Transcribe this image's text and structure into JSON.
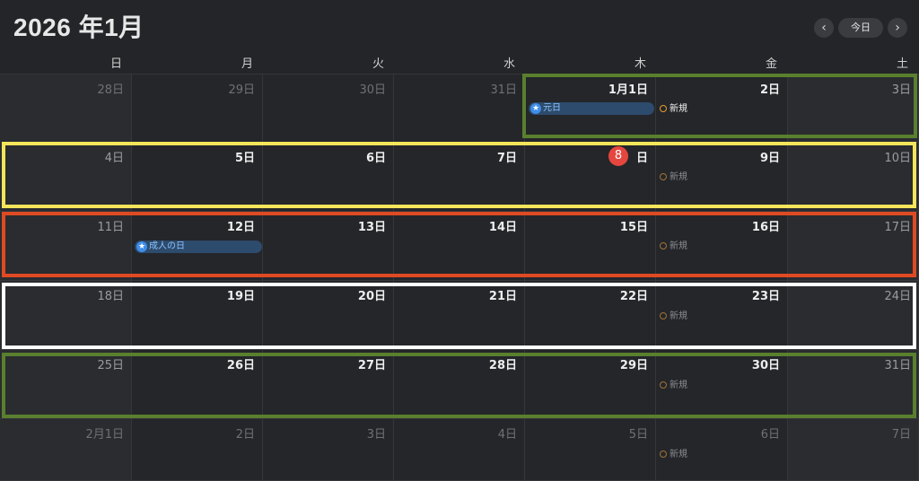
{
  "header": {
    "title": "2026 年1月",
    "prev_label": "‹",
    "today_label": "今日",
    "next_label": "›"
  },
  "weekdays": [
    "日",
    "月",
    "火",
    "水",
    "木",
    "金",
    "土"
  ],
  "weeks": [
    [
      "28日",
      "29日",
      "30日",
      "31日",
      "1月1日",
      "2日",
      "3日"
    ],
    [
      "4日",
      "5日",
      "6日",
      "7日",
      "8",
      "9日",
      "10日"
    ],
    [
      "11日",
      "12日",
      "13日",
      "14日",
      "15日",
      "16日",
      "17日"
    ],
    [
      "18日",
      "19日",
      "20日",
      "21日",
      "22日",
      "23日",
      "24日"
    ],
    [
      "25日",
      "26日",
      "27日",
      "28日",
      "29日",
      "30日",
      "31日"
    ],
    [
      "2月1日",
      "2日",
      "3日",
      "4日",
      "5日",
      "6日",
      "7日"
    ]
  ],
  "today_suffix": "日",
  "events": {
    "new_year": "元日",
    "coming_of_age": "成人の日",
    "new_label": "新規"
  },
  "colors": {
    "highlight_green": "#5a7f2e",
    "highlight_yellow": "#f4e55a",
    "highlight_red": "#e04a22",
    "highlight_white": "#ffffff",
    "today_red": "#e5473f",
    "holiday_blue": "#3f8ee8",
    "new_event_orange": "#e79b2f"
  }
}
